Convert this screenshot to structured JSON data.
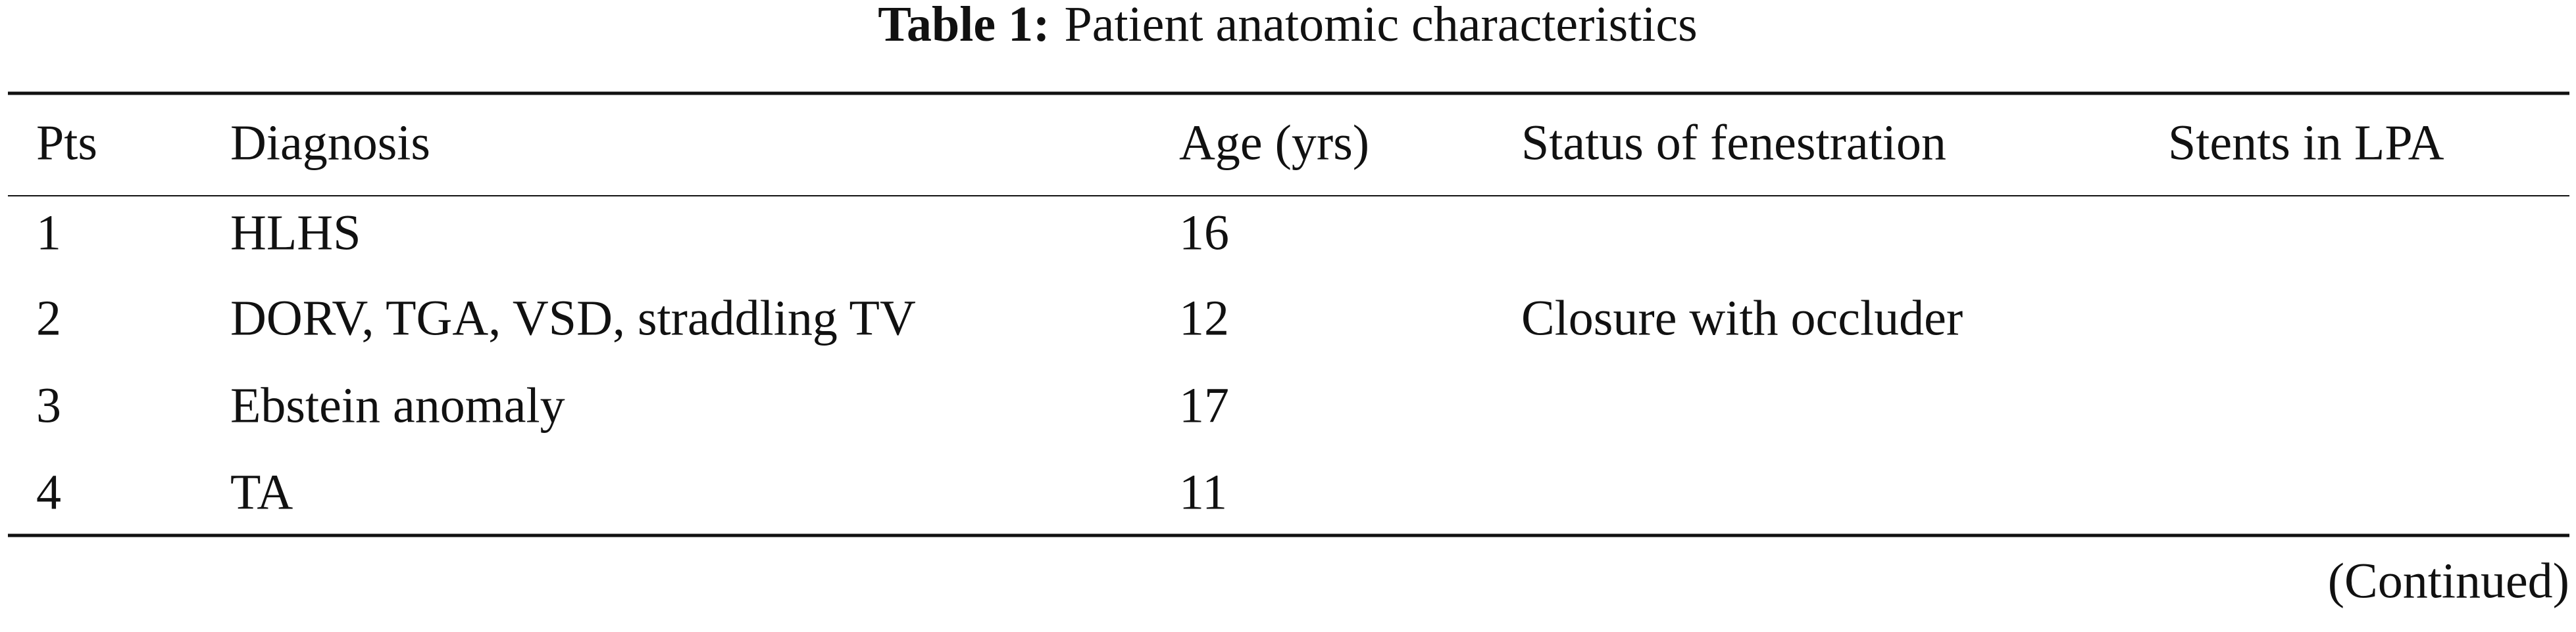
{
  "caption": {
    "label": "Table 1:",
    "text": "Patient anatomic characteristics"
  },
  "table": {
    "header": [
      "Pts",
      "Diagnosis",
      "Age (yrs)",
      "Status of fenestration",
      "Stents in LPA"
    ],
    "rows": [
      {
        "pts": 1,
        "diagnosis": "HLHS",
        "age": 16
      },
      {
        "pts": 2,
        "diagnosis": "DORV, TGA, VSD, straddling TV",
        "age": 12,
        "fenestration": "Closure with occluder"
      },
      {
        "pts": 3,
        "diagnosis": "Ebstein anomaly",
        "age": 17
      },
      {
        "pts": 4,
        "diagnosis": "TA",
        "age": 11
      }
    ]
  },
  "footer": "(Continued)"
}
